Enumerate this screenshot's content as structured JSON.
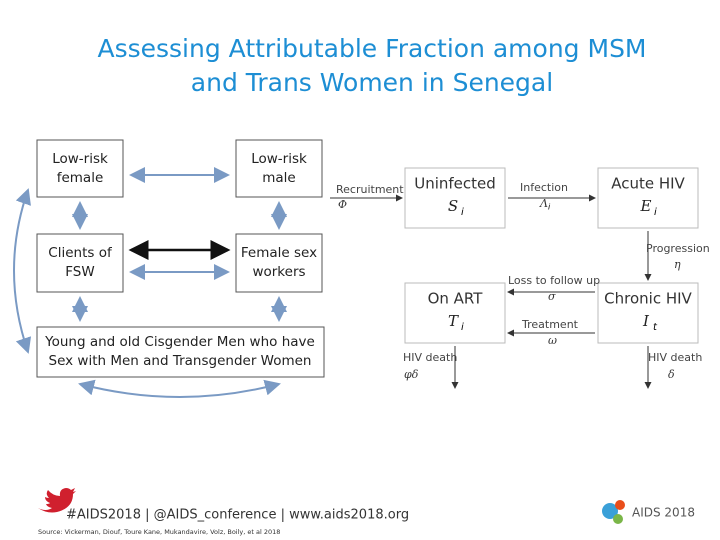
{
  "header": {
    "title": [
      "Assessing Attributable Fraction among MSM",
      "and Trans Women in Senegal"
    ]
  },
  "network": {
    "boxes": [
      {
        "lines": [
          "Low-risk",
          "female"
        ]
      },
      {
        "lines": [
          "Low-risk",
          "male"
        ]
      },
      {
        "lines": [
          "Clients of",
          "FSW"
        ]
      },
      {
        "lines": [
          "Female sex",
          "workers"
        ]
      },
      {
        "lines": [
          "Young and old Cisgender Men who have",
          "Sex with Men and Transgender Women"
        ]
      }
    ]
  },
  "model": {
    "compartments": [
      {
        "label": "Uninfected",
        "symbol": "S",
        "subscript": "i"
      },
      {
        "label": "Acute HIV",
        "symbol": "E",
        "subscript": "i"
      },
      {
        "label": "On ART",
        "symbol": "T",
        "subscript": "i"
      },
      {
        "label": "Chronic HIV",
        "symbol": "I",
        "subscript": "t"
      }
    ],
    "flows": [
      {
        "label": "Recruitment",
        "symbol": "Φ"
      },
      {
        "label": "Infection",
        "symbol": "Λ",
        "subscript": "i"
      },
      {
        "label": "Progression",
        "symbol": "η"
      },
      {
        "label": "Loss to follow up",
        "symbol": "σ"
      },
      {
        "label": "Treatment",
        "symbol": "ω"
      },
      {
        "label": "HIV death",
        "symbol": "φδ"
      },
      {
        "label": "HIV death",
        "symbol": "δ"
      }
    ]
  },
  "footer": {
    "links": "#AIDS2018 | @AIDS_conference | www.aids2018.org",
    "source": "Source: Vickerman, Diouf, Toure Kane, Mukandavire, Volz, Boily, et al 2018",
    "logo": "AIDS 2018"
  }
}
